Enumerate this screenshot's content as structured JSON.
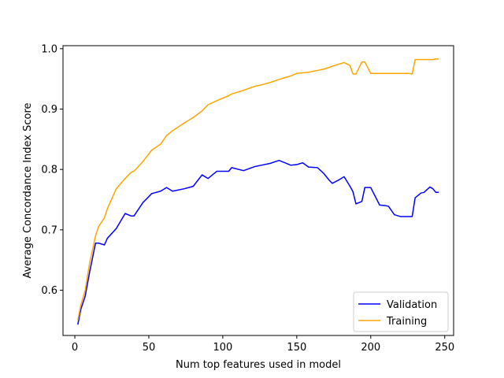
{
  "chart_data": {
    "type": "line",
    "xlabel": "Num top features used in model",
    "ylabel": "Average Concordance Index Score",
    "xlim": [
      -8,
      256
    ],
    "ylim": [
      0.525,
      1.005
    ],
    "xticks": [
      0,
      50,
      100,
      150,
      200,
      250
    ],
    "yticks": [
      0.6,
      0.7,
      0.8,
      0.9,
      1.0
    ],
    "xtick_labels": [
      "0",
      "50",
      "100",
      "150",
      "200",
      "250"
    ],
    "ytick_labels": [
      "0.6",
      "0.7",
      "0.8",
      "0.9",
      "1.0"
    ],
    "legend_position": "lower-right",
    "series": [
      {
        "name": "Validation",
        "color": "#0000ff",
        "x": [
          2,
          4,
          7,
          10,
          14,
          16,
          20,
          22,
          28,
          34,
          38,
          40,
          46,
          52,
          58,
          62,
          66,
          74,
          80,
          86,
          90,
          96,
          100,
          104,
          106,
          114,
          122,
          126,
          132,
          138,
          142,
          146,
          150,
          154,
          158,
          164,
          168,
          172,
          174,
          178,
          182,
          186,
          188,
          190,
          194,
          196,
          200,
          206,
          210,
          212,
          216,
          220,
          224,
          226,
          228,
          230,
          234,
          236,
          240,
          242,
          244,
          246
        ],
        "y": [
          0.543,
          0.568,
          0.59,
          0.63,
          0.678,
          0.678,
          0.675,
          0.686,
          0.702,
          0.727,
          0.723,
          0.723,
          0.745,
          0.76,
          0.764,
          0.77,
          0.764,
          0.768,
          0.772,
          0.791,
          0.785,
          0.797,
          0.797,
          0.797,
          0.803,
          0.798,
          0.805,
          0.807,
          0.81,
          0.815,
          0.811,
          0.807,
          0.808,
          0.811,
          0.804,
          0.803,
          0.794,
          0.782,
          0.777,
          0.782,
          0.788,
          0.772,
          0.763,
          0.743,
          0.747,
          0.77,
          0.77,
          0.741,
          0.74,
          0.739,
          0.725,
          0.722,
          0.722,
          0.722,
          0.722,
          0.753,
          0.761,
          0.762,
          0.771,
          0.768,
          0.762,
          0.762
        ]
      },
      {
        "name": "Training",
        "color": "#ffa500",
        "x": [
          2,
          4,
          7,
          10,
          14,
          16,
          20,
          22,
          28,
          34,
          38,
          40,
          46,
          52,
          58,
          62,
          66,
          74,
          80,
          86,
          90,
          96,
          100,
          104,
          106,
          114,
          122,
          126,
          132,
          138,
          142,
          146,
          150,
          154,
          158,
          164,
          168,
          172,
          174,
          178,
          182,
          186,
          188,
          190,
          194,
          196,
          200,
          206,
          210,
          212,
          216,
          220,
          224,
          226,
          228,
          230,
          234,
          236,
          240,
          242,
          244,
          246
        ],
        "y": [
          0.55,
          0.575,
          0.6,
          0.645,
          0.69,
          0.705,
          0.72,
          0.735,
          0.768,
          0.785,
          0.795,
          0.797,
          0.813,
          0.832,
          0.842,
          0.856,
          0.864,
          0.877,
          0.886,
          0.897,
          0.907,
          0.914,
          0.918,
          0.922,
          0.925,
          0.931,
          0.938,
          0.94,
          0.944,
          0.949,
          0.952,
          0.955,
          0.959,
          0.96,
          0.961,
          0.964,
          0.966,
          0.969,
          0.971,
          0.974,
          0.977,
          0.972,
          0.958,
          0.958,
          0.978,
          0.978,
          0.959,
          0.959,
          0.959,
          0.959,
          0.959,
          0.959,
          0.959,
          0.959,
          0.958,
          0.982,
          0.982,
          0.982,
          0.982,
          0.982,
          0.983,
          0.983
        ]
      }
    ]
  }
}
